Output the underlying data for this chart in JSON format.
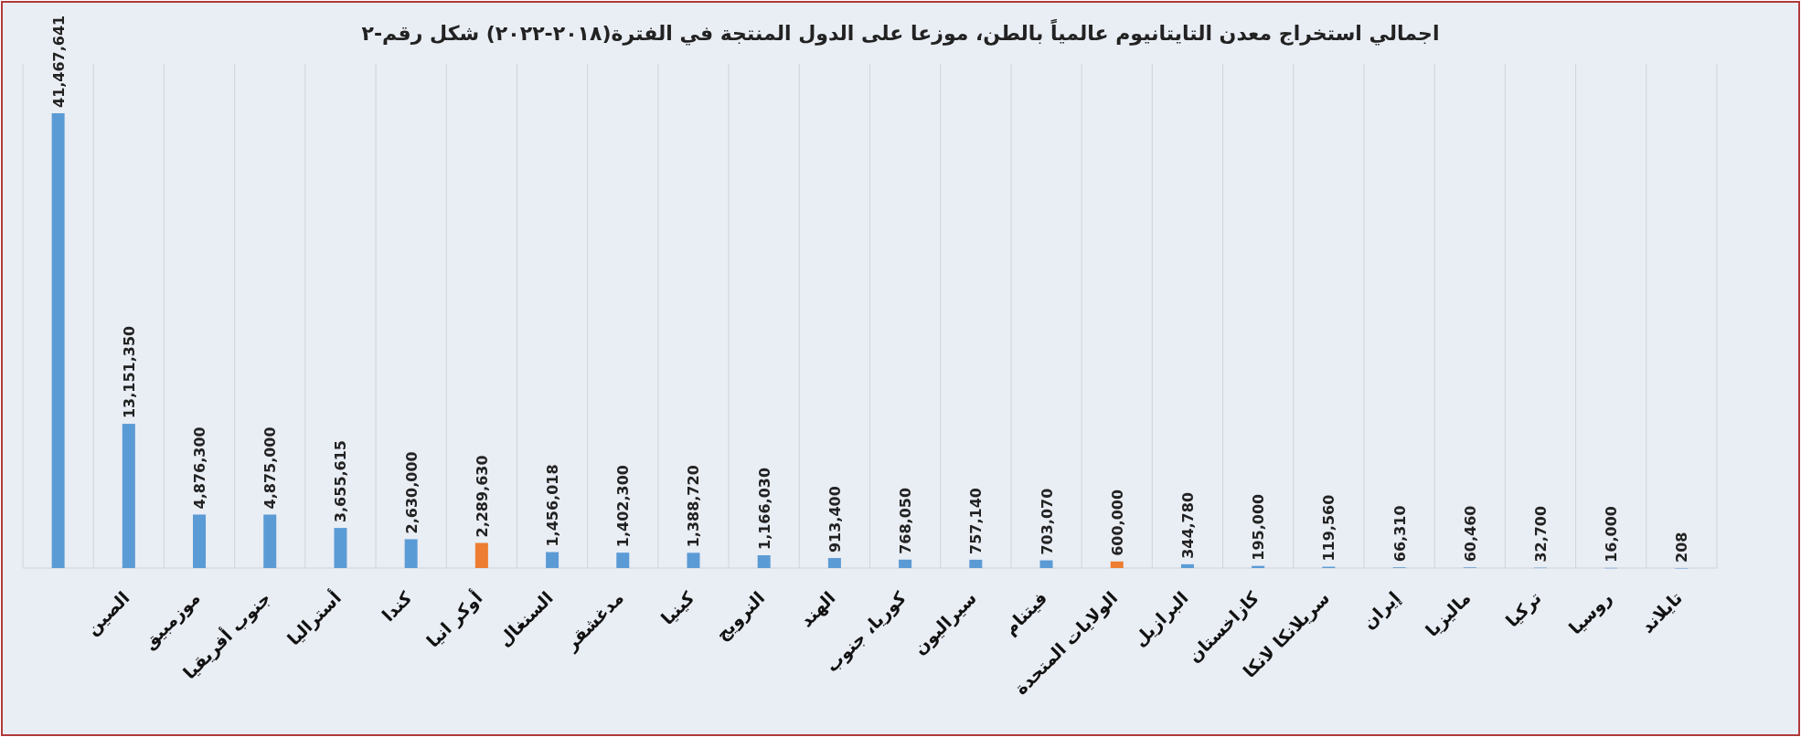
{
  "chart_data": {
    "type": "bar",
    "title": "اجمالي استخراج معدن التايتانيوم عالمياً بالطن، موزعا على الدول المنتجة في الفترة(٢٠١٨-٢٠٢٢) شكل رقم-٢",
    "categories": [
      null,
      "الصين",
      "موزمبيق",
      "جنوب أفريقيا",
      "أستراليا",
      "كندا",
      "أوكر انيا",
      "السنغال",
      "مدغشقر",
      "كينيا",
      "النرويج",
      "الهند",
      "كوريا، جنوب",
      "سيراليون",
      "فيتنام",
      "الولايات المتحدة",
      "البرازيل",
      "كازاخستان",
      "سريلانكا لانكا",
      "إيران",
      "ماليزيا",
      "تركيا",
      "روسيا",
      "تايلاند"
    ],
    "values": [
      41467641,
      13151350,
      4876300,
      4875000,
      3655615,
      2630000,
      2289630,
      1456018,
      1402300,
      1388720,
      1166030,
      913400,
      768050,
      757140,
      703070,
      600000,
      344780,
      195000,
      119560,
      66310,
      60460,
      32700,
      16000,
      208
    ],
    "value_labels": [
      "41,467,641",
      "13,151,350",
      "4,876,300",
      "4,875,000",
      "3,655,615",
      "2,630,000",
      "2,289,630",
      "1,456,018",
      "1,402,300",
      "1,388,720",
      "1,166,030",
      "913,400",
      "768,050",
      "757,140",
      "703,070",
      "600,000",
      "344,780",
      "195,000",
      "119,560",
      "66,310",
      "60,460",
      "32,700",
      "16,000",
      "208"
    ],
    "colors": [
      "#5b9bd5",
      "#5b9bd5",
      "#5b9bd5",
      "#5b9bd5",
      "#5b9bd5",
      "#5b9bd5",
      "#ed7d31",
      "#5b9bd5",
      "#5b9bd5",
      "#5b9bd5",
      "#5b9bd5",
      "#5b9bd5",
      "#5b9bd5",
      "#5b9bd5",
      "#5b9bd5",
      "#ed7d31",
      "#5b9bd5",
      "#5b9bd5",
      "#5b9bd5",
      "#5b9bd5",
      "#5b9bd5",
      "#5b9bd5",
      "#5b9bd5",
      "#5b9bd5"
    ],
    "grid": "x"
  }
}
